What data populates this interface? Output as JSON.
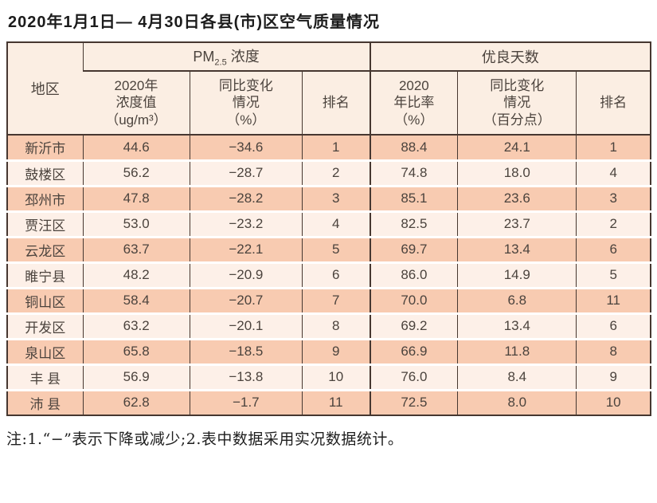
{
  "page": {
    "title": "2020年1月1日— 4月30日各县(市)区空气质量情况",
    "note": "注:1.“−”表示下降或减少;2.表中数据采用实况数据统计。"
  },
  "table": {
    "region_header": "地区",
    "pm_group": {
      "prefix": "PM",
      "sub": "2.5",
      "suffix": " 浓度"
    },
    "good_days_group": "优良天数",
    "sub_headers": {
      "pm_value": "2020年\n浓度值\n（ug/m³）",
      "pm_change": "同比变化\n情况\n（%）",
      "pm_rank": "排名",
      "good_ratio": "2020\n年比率\n（%）",
      "good_change": "同比变化\n情况\n（百分点）",
      "good_rank": "排名"
    },
    "rows": [
      {
        "region": "新沂市",
        "pm_value": "44.6",
        "pm_change": "−34.6",
        "pm_rank": "1",
        "good_ratio": "88.4",
        "good_change": "24.1",
        "good_rank": "1"
      },
      {
        "region": "鼓楼区",
        "pm_value": "56.2",
        "pm_change": "−28.7",
        "pm_rank": "2",
        "good_ratio": "74.8",
        "good_change": "18.0",
        "good_rank": "4"
      },
      {
        "region": "邳州市",
        "pm_value": "47.8",
        "pm_change": "−28.2",
        "pm_rank": "3",
        "good_ratio": "85.1",
        "good_change": "23.6",
        "good_rank": "3"
      },
      {
        "region": "贾汪区",
        "pm_value": "53.0",
        "pm_change": "−23.2",
        "pm_rank": "4",
        "good_ratio": "82.5",
        "good_change": "23.7",
        "good_rank": "2"
      },
      {
        "region": "云龙区",
        "pm_value": "63.7",
        "pm_change": "−22.1",
        "pm_rank": "5",
        "good_ratio": "69.7",
        "good_change": "13.4",
        "good_rank": "6"
      },
      {
        "region": "睢宁县",
        "pm_value": "48.2",
        "pm_change": "−20.9",
        "pm_rank": "6",
        "good_ratio": "86.0",
        "good_change": "14.9",
        "good_rank": "5"
      },
      {
        "region": "铜山区",
        "pm_value": "58.4",
        "pm_change": "−20.7",
        "pm_rank": "7",
        "good_ratio": "70.0",
        "good_change": "6.8",
        "good_rank": "11"
      },
      {
        "region": "开发区",
        "pm_value": "63.2",
        "pm_change": "−20.1",
        "pm_rank": "8",
        "good_ratio": "69.2",
        "good_change": "13.4",
        "good_rank": "6"
      },
      {
        "region": "泉山区",
        "pm_value": "65.8",
        "pm_change": "−18.5",
        "pm_rank": "9",
        "good_ratio": "66.9",
        "good_change": "11.8",
        "good_rank": "8"
      },
      {
        "region": "丰 县",
        "pm_value": "56.9",
        "pm_change": "−13.8",
        "pm_rank": "10",
        "good_ratio": "76.0",
        "good_change": "8.4",
        "good_rank": "9"
      },
      {
        "region": "沛 县",
        "pm_value": "62.8",
        "pm_change": "−1.7",
        "pm_rank": "11",
        "good_ratio": "72.5",
        "good_change": "8.0",
        "good_rank": "10"
      }
    ]
  }
}
